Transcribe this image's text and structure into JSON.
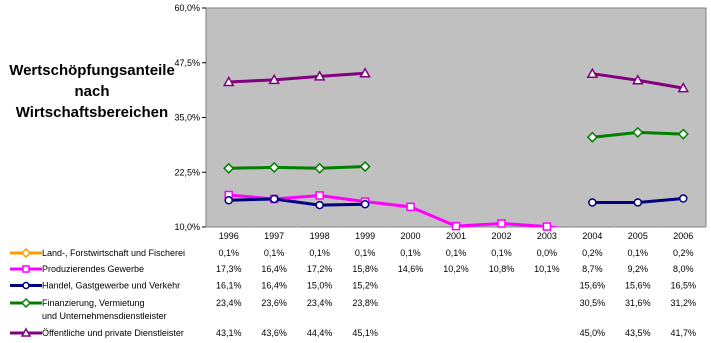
{
  "chart_data": {
    "type": "line",
    "title_lines": [
      "Wertschöpfungsanteile",
      "nach",
      "Wirtschaftsbereichen"
    ],
    "x": [
      "1996",
      "1997",
      "1998",
      "1999",
      "2000",
      "2001",
      "2002",
      "2003",
      "2004",
      "2005",
      "2006"
    ],
    "y_ticks": [
      "10,0%",
      "22,5%",
      "35,0%",
      "47,5%",
      "60,0%"
    ],
    "ylim": [
      10,
      60
    ],
    "grid": false,
    "plot_background": "#c0c0c0",
    "legend_placement": "data-table-below",
    "series": [
      {
        "name": "Land-, Forstwirtschaft und Fischerei",
        "color": "#ff9900",
        "marker": "diamond",
        "values": [
          0.1,
          0.1,
          0.1,
          0.1,
          0.1,
          0.1,
          0.1,
          0.0,
          0.2,
          0.1,
          0.2
        ],
        "labels": [
          "0,1%",
          "0,1%",
          "0,1%",
          "0,1%",
          "0,1%",
          "0,1%",
          "0,1%",
          "0,0%",
          "0,2%",
          "0,1%",
          "0,2%"
        ]
      },
      {
        "name": "Produzierendes Gewerbe",
        "color": "#ff00ff",
        "marker": "square",
        "values": [
          17.3,
          16.4,
          17.2,
          15.8,
          14.6,
          10.2,
          10.8,
          10.1,
          8.7,
          9.2,
          8.0
        ],
        "labels": [
          "17,3%",
          "16,4%",
          "17,2%",
          "15,8%",
          "14,6%",
          "10,2%",
          "10,8%",
          "10,1%",
          "8,7%",
          "9,2%",
          "8,0%"
        ]
      },
      {
        "name": "Handel, Gastgewerbe und Verkehr",
        "color": "#000080",
        "marker": "circle",
        "values": [
          16.1,
          16.4,
          15.0,
          15.2,
          null,
          null,
          null,
          null,
          15.6,
          15.6,
          16.5
        ],
        "labels": [
          "16,1%",
          "16,4%",
          "15,0%",
          "15,2%",
          "",
          "",
          "",
          "",
          "15,6%",
          "15,6%",
          "16,5%"
        ]
      },
      {
        "name": "Finanzierung, Vermietung und Unternehmensdienstleister",
        "color": "#008000",
        "marker": "diamond",
        "values": [
          23.4,
          23.6,
          23.4,
          23.8,
          null,
          null,
          null,
          null,
          30.5,
          31.6,
          31.2
        ],
        "labels": [
          "23,4%",
          "23,6%",
          "23,4%",
          "23,8%",
          "",
          "",
          "",
          "",
          "30,5%",
          "31,6%",
          "31,2%"
        ]
      },
      {
        "name": "Öffentliche und private Dienstleister",
        "color": "#800080",
        "marker": "triangle",
        "values": [
          43.1,
          43.6,
          44.4,
          45.1,
          null,
          null,
          null,
          null,
          45.0,
          43.5,
          41.7
        ],
        "labels": [
          "43,1%",
          "43,6%",
          "44,4%",
          "45,1%",
          "",
          "",
          "",
          "",
          "45,0%",
          "43,5%",
          "41,7%"
        ]
      }
    ]
  }
}
